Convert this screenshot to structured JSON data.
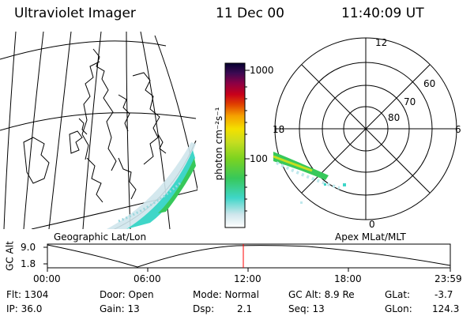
{
  "header": {
    "instrument": "Ultraviolet Imager",
    "date": "11 Dec 00",
    "time": "11:40:09 UT"
  },
  "colorbar": {
    "ticks": [
      "1000",
      "100"
    ],
    "unit_label": "photon cm⁻²s⁻¹"
  },
  "left_panel": {
    "caption": "Geographic Lat/Lon"
  },
  "right_panel": {
    "caption": "Apex MLat/MLT",
    "mlt_labels": [
      "12",
      "18",
      "6",
      "0"
    ],
    "mlat_labels": [
      "60",
      "70",
      "80"
    ]
  },
  "altitude_strip": {
    "axis_label": "GC Alt",
    "y_ticks": [
      "9.0",
      "1.8"
    ],
    "x_ticks": [
      "00:00",
      "06:00",
      "12:00",
      "18:00",
      "23:59"
    ],
    "marker_color": "#ff0000"
  },
  "status": {
    "flt": "Flt: 1304",
    "ip": "IP: 36.0",
    "door": "Door: Open",
    "gain": "Gain: 13",
    "mode": "Mode: Normal",
    "dsp_label": "Dsp:",
    "dsp_value": "2.1",
    "gc_alt": "GC Alt: 8.9 Re",
    "seq": "Seq: 13",
    "glat_label": "GLat:",
    "glat_value": "-3.7",
    "glon_label": "GLon:",
    "glon_value": "124.3"
  }
}
